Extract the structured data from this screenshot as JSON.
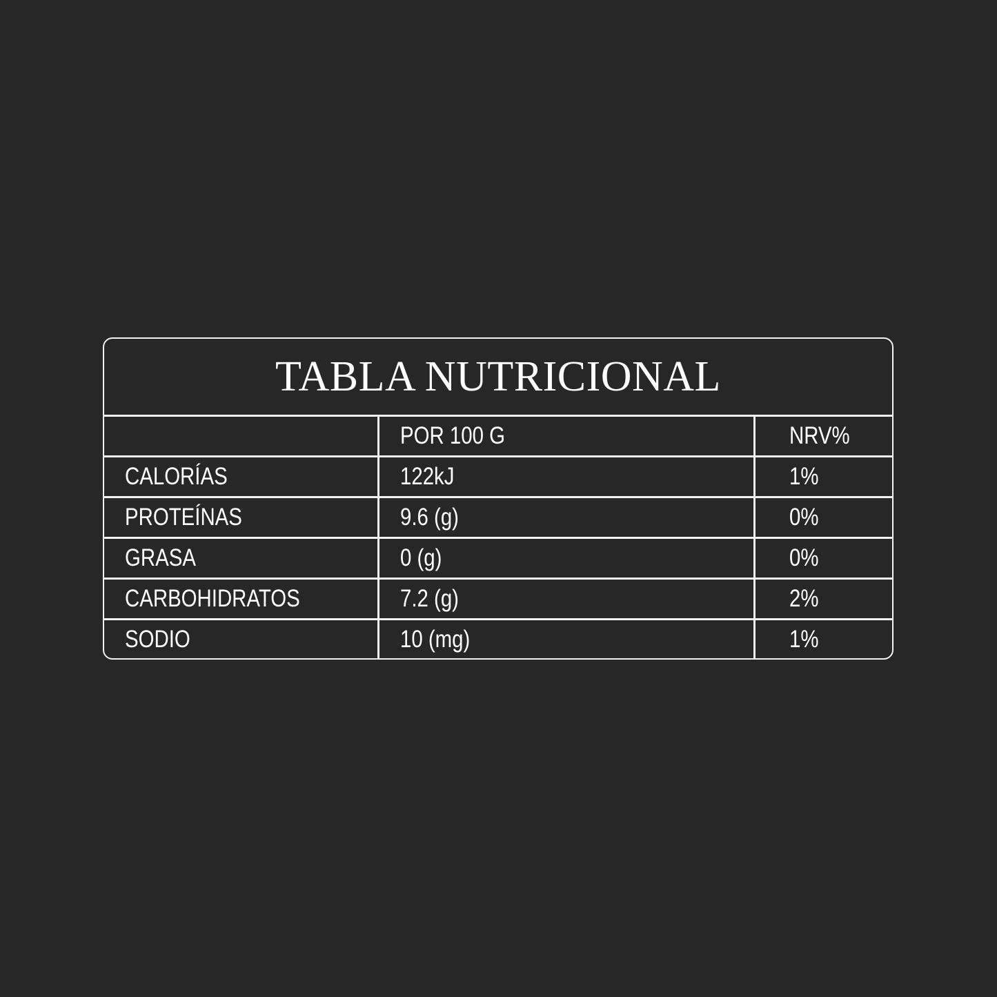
{
  "title": "TABLA NUTRICIONAL",
  "header": [
    "",
    "POR 100 G",
    "NRV%"
  ],
  "rows": [
    [
      "CALORÍAS",
      "122kJ",
      "1%"
    ],
    [
      "PROTEÍNAS",
      "9.6 (g)",
      "0%"
    ],
    [
      "GRASA",
      "0 (g)",
      "0%"
    ],
    [
      "CARBOHIDRATOS",
      "7.2 (g)",
      "2%"
    ],
    [
      "SODIO",
      "10 (mg)",
      "1%"
    ]
  ],
  "colors": {
    "background": "#272727",
    "foreground": "#ffffff"
  }
}
